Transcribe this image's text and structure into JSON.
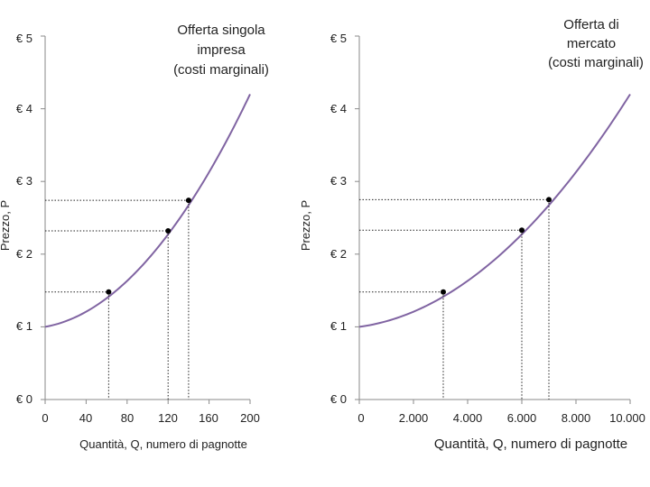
{
  "chart_data": [
    {
      "type": "line",
      "ylabel": "Prezzo, P",
      "xlabel": "Quantità, Q, numero di pagnotte",
      "xlim": [
        0,
        200
      ],
      "ylim": [
        0,
        5
      ],
      "xticks": [
        0,
        40,
        80,
        120,
        160,
        200
      ],
      "xtick_labels": [
        "0",
        "40",
        "80",
        "120",
        "160",
        "200"
      ],
      "yticks": [
        0,
        1,
        2,
        3,
        4,
        5
      ],
      "ytick_labels": [
        "€ 0",
        "€ 1",
        "€ 2",
        "€ 3",
        "€ 4",
        "€ 5"
      ],
      "annotation": [
        "Offerta singola",
        "impresa",
        "(costi marginali)"
      ],
      "curve": {
        "x_range": [
          0,
          200
        ],
        "a": 1,
        "b": 0.0025,
        "c": 6.75e-05,
        "color": "#8064a2"
      },
      "points": [
        {
          "x": 62,
          "y": 1.48
        },
        {
          "x": 120,
          "y": 2.32
        },
        {
          "x": 140,
          "y": 2.74
        }
      ]
    },
    {
      "type": "line",
      "ylabel": "Prezzo, P",
      "xlabel": "Quantità, Q, numero di pagnotte",
      "xlim": [
        0,
        10000
      ],
      "ylim": [
        0,
        5
      ],
      "xticks": [
        0,
        2000,
        4000,
        6000,
        8000,
        10000
      ],
      "xtick_labels": [
        "0",
        "2.000",
        "4.000",
        "6.000",
        "8.000",
        "10.000"
      ],
      "yticks": [
        0,
        1,
        2,
        3,
        4,
        5
      ],
      "ytick_labels": [
        "€ 0",
        "€ 1",
        "€ 2",
        "€ 3",
        "€ 4",
        "€ 5"
      ],
      "annotation": [
        "Offerta di",
        "mercato",
        "(costi marginali)"
      ],
      "curve": {
        "x_range": [
          0,
          10000
        ],
        "a": 1,
        "b": 5e-05,
        "c": 2.7e-08,
        "color": "#8064a2"
      },
      "points": [
        {
          "x": 3100,
          "y": 1.48
        },
        {
          "x": 6000,
          "y": 2.33
        },
        {
          "x": 7000,
          "y": 2.75
        }
      ]
    }
  ]
}
